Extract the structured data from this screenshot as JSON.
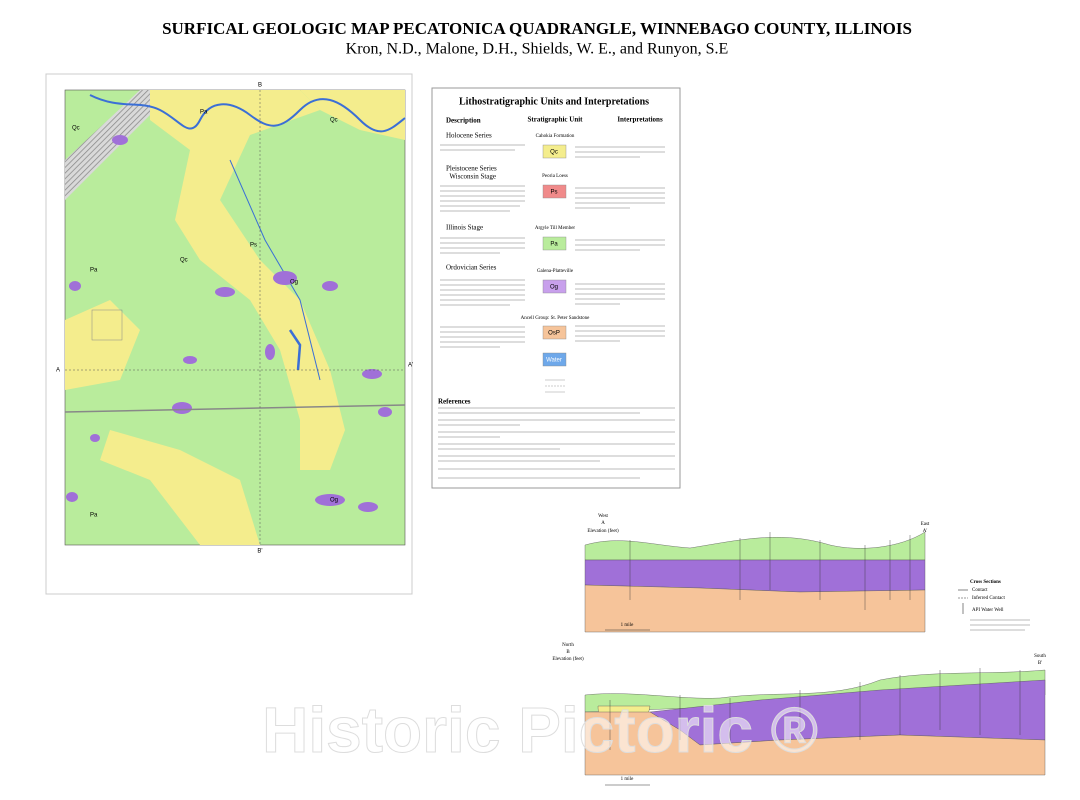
{
  "header": {
    "title": "SURFICAL GEOLOGIC MAP PECATONICA QUADRANGLE, WINNEBAGO COUNTY, ILLINOIS",
    "authors": "Kron, N.D., Malone, D.H., Shields, W. E., and Runyon, S.E"
  },
  "legend": {
    "title": "Lithostratigraphic Units and Interpretations",
    "columns": [
      "Description",
      "Stratigraphic Unit",
      "Interpretations"
    ],
    "sections": [
      {
        "heading": "Holocene Series"
      },
      {
        "heading": "Pleistocene Series",
        "subheading": "Wisconsin Stage"
      },
      {
        "heading": "Illinois Stage"
      },
      {
        "heading": "Ordovician Series"
      }
    ],
    "units": [
      {
        "name": "Cahokia Formation",
        "symbol": "Qc"
      },
      {
        "name": "Peoria Loess",
        "symbol": "Ps"
      },
      {
        "name": "Argyle Till Member",
        "symbol": "Pa"
      },
      {
        "name": "Galena-Platteville",
        "symbol": "Og"
      },
      {
        "name": "Ancell Group: St. Peter Sandstone",
        "symbol": "OsP"
      },
      {
        "symbol": "Water"
      }
    ],
    "references_heading": "References"
  },
  "map": {
    "section_labels": [
      "A",
      "A'",
      "B",
      "B'"
    ]
  },
  "cross_sections": [
    {
      "left": "West",
      "left_label": "A",
      "axis": "Elevation (feet)",
      "right": "East",
      "right_label": "A'",
      "scale": "1 mile"
    },
    {
      "left": "North",
      "left_label": "B",
      "axis": "Elevation (feet)",
      "right": "South",
      "right_label": "B'",
      "scale": "1 mile"
    }
  ],
  "cross_section_legend": {
    "title": "Cross Sections",
    "items": [
      "Contact",
      "Inferred Contact",
      "API Water Well"
    ]
  },
  "watermark": "Historic Pictoric ®"
}
